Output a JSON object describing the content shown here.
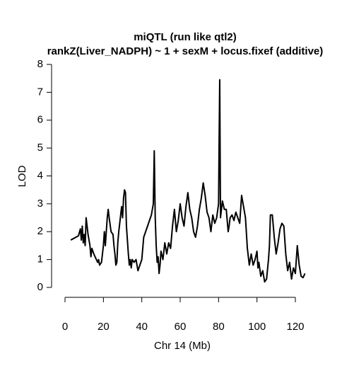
{
  "chart_data": {
    "type": "line",
    "title": "miQTL (run like qtl2)",
    "subtitle": "rankZ(Liver_NADPH) ~ 1 + sexM + locus.fixef (additive)",
    "xlabel": "Chr 14 (Mb)",
    "ylabel": "LOD",
    "xlim": [
      0,
      120
    ],
    "ylim": [
      0,
      8
    ],
    "xticks": [
      0,
      20,
      40,
      60,
      80,
      100,
      120
    ],
    "yticks": [
      0,
      1,
      2,
      3,
      4,
      5,
      6,
      7,
      8
    ],
    "x": [
      3,
      7,
      8,
      8.5,
      9,
      9.5,
      10,
      10.5,
      11,
      12,
      13,
      13.5,
      14,
      15,
      16,
      17,
      17.5,
      18,
      19,
      20,
      20.5,
      21,
      22,
      22.5,
      23,
      24,
      25,
      25.5,
      26,
      26.5,
      27,
      27.5,
      28,
      29,
      29.5,
      30,
      30.5,
      31,
      31.5,
      32,
      33,
      33.5,
      34,
      34.5,
      35,
      36,
      37,
      38,
      39,
      40,
      41,
      42,
      43,
      44,
      45,
      46,
      46.5,
      47,
      47.5,
      48,
      48.5,
      49,
      49.5,
      50,
      51,
      52,
      53,
      54,
      55,
      56,
      57,
      58,
      59,
      60,
      61,
      62,
      63,
      64,
      65,
      66,
      67,
      68,
      69,
      70,
      71,
      72,
      73,
      74,
      75,
      76,
      77,
      78,
      79,
      80,
      80.3,
      80.6,
      81,
      82,
      83,
      84,
      85,
      85.5,
      86,
      87,
      88,
      89,
      90,
      91,
      92,
      93,
      94,
      95,
      96,
      97,
      98,
      99,
      100,
      100.5,
      101,
      102,
      103,
      104,
      105,
      106,
      106.5,
      107,
      108,
      109,
      110,
      111,
      112,
      113,
      114,
      115,
      116,
      117,
      118,
      119,
      120,
      121,
      122,
      123,
      124,
      125
    ],
    "series": [
      {
        "name": "LOD",
        "color": "#000000",
        "values": [
          1.7,
          1.85,
          2.1,
          1.7,
          2.2,
          1.6,
          1.9,
          1.5,
          2.5,
          1.9,
          1.5,
          1.1,
          1.4,
          1.2,
          1.05,
          0.9,
          1.0,
          0.8,
          0.9,
          1.5,
          2.0,
          1.5,
          2.5,
          2.8,
          2.5,
          2.0,
          1.9,
          1.5,
          1.2,
          0.8,
          0.9,
          1.6,
          2.0,
          2.6,
          2.9,
          2.5,
          3.2,
          3.5,
          3.4,
          2.2,
          1.2,
          0.8,
          1.0,
          0.7,
          1.0,
          0.9,
          1.0,
          0.6,
          0.8,
          1.0,
          1.8,
          2.0,
          2.2,
          2.4,
          2.6,
          3.0,
          4.9,
          2.5,
          1.5,
          0.9,
          1.1,
          0.5,
          0.8,
          1.3,
          1.0,
          1.6,
          1.2,
          1.6,
          1.4,
          2.2,
          2.8,
          2.0,
          2.4,
          3.0,
          2.5,
          2.2,
          2.9,
          3.4,
          2.8,
          2.5,
          2.0,
          1.8,
          2.2,
          2.8,
          3.2,
          3.75,
          3.3,
          2.7,
          2.5,
          2.0,
          2.6,
          2.3,
          2.5,
          3.0,
          5.4,
          7.45,
          2.5,
          3.1,
          2.8,
          2.8,
          2.0,
          2.2,
          2.5,
          2.6,
          2.4,
          2.7,
          2.5,
          2.3,
          3.3,
          2.9,
          2.5,
          1.4,
          0.8,
          1.2,
          0.8,
          1.0,
          1.3,
          0.7,
          0.9,
          0.4,
          0.6,
          0.2,
          0.3,
          1.0,
          1.5,
          2.6,
          2.6,
          1.8,
          1.2,
          1.6,
          2.1,
          2.3,
          2.2,
          1.2,
          0.6,
          0.9,
          0.3,
          0.7,
          0.5,
          1.5,
          0.8,
          0.4,
          0.35,
          0.5
        ]
      }
    ]
  }
}
